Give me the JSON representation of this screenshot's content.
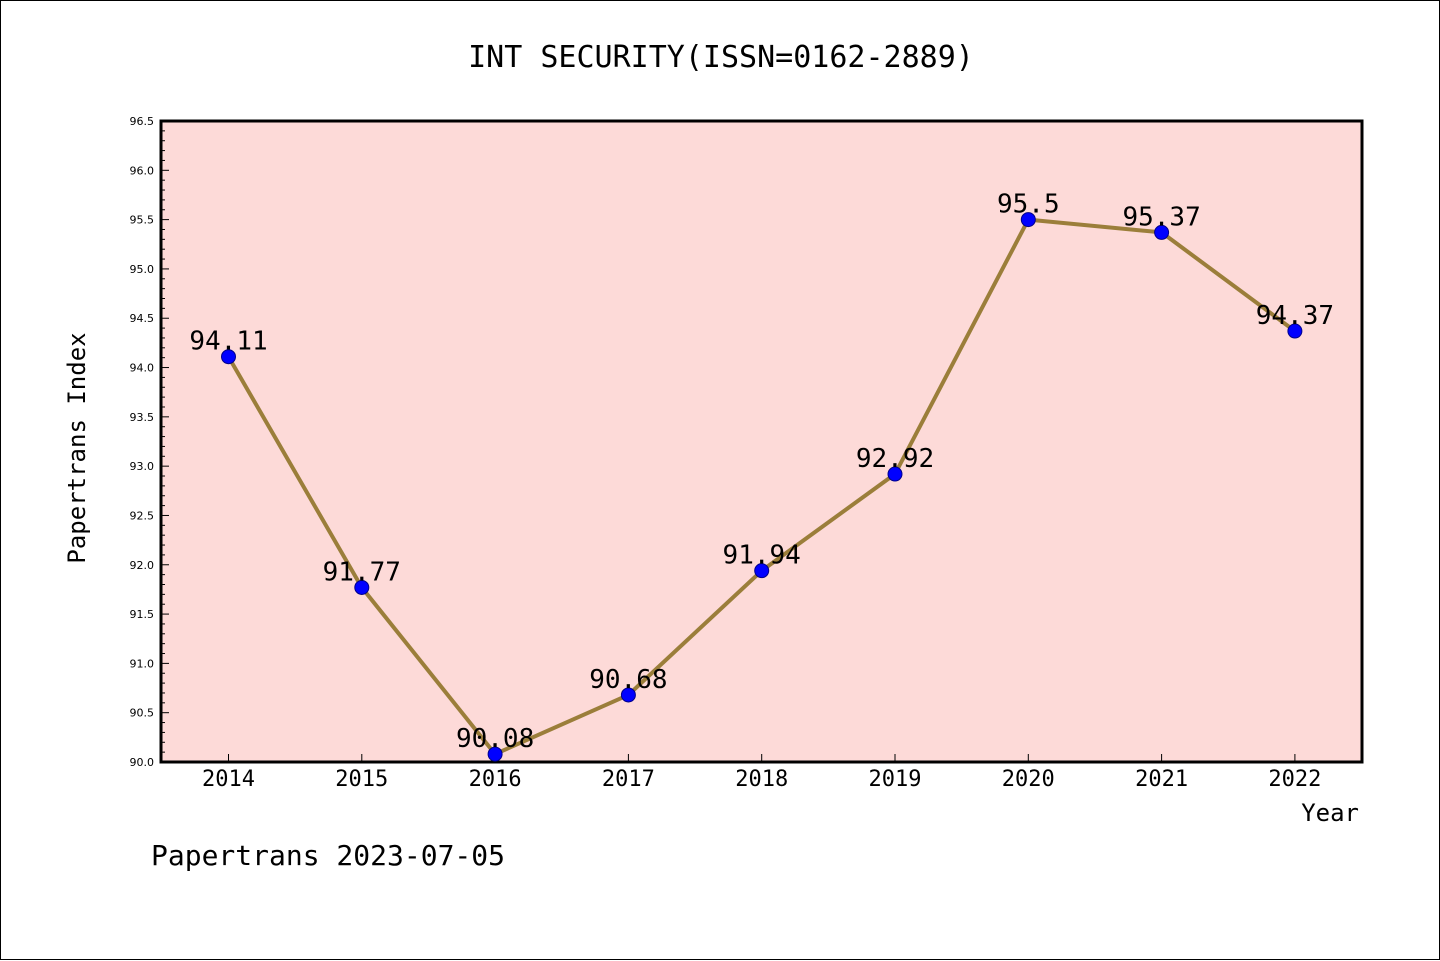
{
  "chart_data": {
    "type": "line",
    "title": "INT SECURITY(ISSN=0162-2889)",
    "xlabel": "Year",
    "ylabel": "Papertrans Index",
    "x": [
      "2014",
      "2015",
      "2016",
      "2017",
      "2018",
      "2019",
      "2020",
      "2021",
      "2022"
    ],
    "series": [
      {
        "values": [
          94.11,
          91.77,
          90.08,
          90.68,
          91.94,
          92.92,
          95.5,
          95.37,
          94.37
        ]
      }
    ],
    "data_labels": [
      "94.11",
      "91.77",
      "90.08",
      "90.68",
      "91.94",
      "92.92",
      "95.5",
      "95.37",
      "94.37"
    ],
    "ylim": [
      90.0,
      96.5
    ],
    "yticks": [
      "90.0",
      "90.5",
      "91.0",
      "91.5",
      "92.0",
      "92.5",
      "93.0",
      "93.5",
      "94.0",
      "94.5",
      "95.0",
      "95.5",
      "96.0",
      "96.5"
    ],
    "grid": false,
    "colors": {
      "plot_background": "#fddad8",
      "line": "#9b7e3a",
      "marker": "#0000ff"
    }
  },
  "footer": "Papertrans 2023-07-05"
}
